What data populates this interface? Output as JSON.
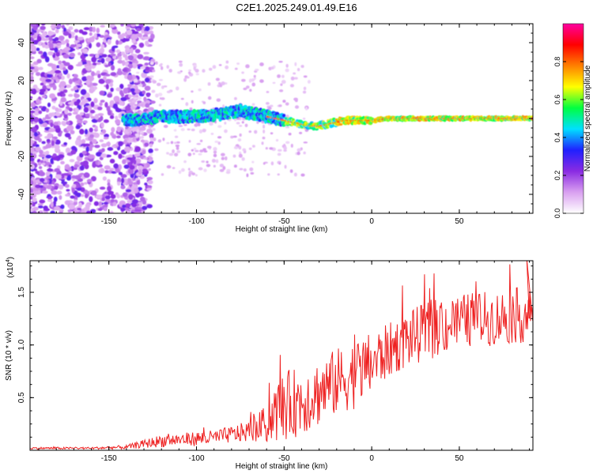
{
  "title": "C2E1.2025.249.01.49.E16",
  "chart_data": [
    {
      "type": "heatmap",
      "xlabel": "Height of straight line (km)",
      "ylabel": "Frequency (Hz)",
      "xlim": [
        -195,
        92
      ],
      "ylim": [
        -50,
        50
      ],
      "xticks": [
        -150,
        -100,
        -50,
        0,
        50
      ],
      "yticks": [
        -40,
        -20,
        0,
        20,
        40
      ],
      "xtick_labels": [
        "-150",
        "-100",
        "-50",
        "0",
        "50"
      ],
      "ytick_labels": [
        "-40",
        "-20",
        "0",
        "20",
        "40"
      ],
      "colorbar": {
        "label": "Normalized spectral amplitude",
        "range": [
          0,
          1
        ],
        "ticks": [
          0.0,
          0.2,
          0.4,
          0.6,
          0.8
        ],
        "tick_labels": [
          "0.0",
          "0.2",
          "0.4",
          "0.6",
          "0.8"
        ],
        "colors": [
          "#ffffff",
          "#d9a0f0",
          "#8a2be2",
          "#2020ff",
          "#00e0ff",
          "#00ff40",
          "#ffff00",
          "#ff8000",
          "#ff0000",
          "#ff00a0"
        ]
      },
      "ridge": {
        "x": [
          -140,
          -130,
          -120,
          -110,
          -100,
          -90,
          -80,
          -75,
          -70,
          -60,
          -50,
          -40,
          -35,
          -30,
          -25,
          -20,
          -15,
          -10,
          0,
          10,
          20,
          30,
          40,
          50,
          60,
          70,
          80,
          90
        ],
        "freq": [
          -1,
          0,
          1,
          1,
          1,
          2,
          3,
          4,
          3,
          1,
          -1,
          -3,
          -4,
          -4,
          -3,
          -2,
          -1,
          -1,
          -1,
          0,
          0,
          0,
          0,
          0,
          0,
          0,
          0,
          0
        ]
      }
    },
    {
      "type": "line",
      "xlabel": "Height of straight line (km)",
      "ylabel": "SNR (10 * v/v)",
      "scale_label": "(x10",
      "scale_exponent": "4",
      "xlim": [
        -195,
        92
      ],
      "ylim": [
        0,
        1.8
      ],
      "xticks": [
        -150,
        -100,
        -50,
        0,
        50
      ],
      "yticks": [
        0.5,
        1.0,
        1.5
      ],
      "xtick_labels": [
        "-150",
        "-100",
        "-50",
        "0",
        "50"
      ],
      "ytick_labels": [
        "0.5",
        "1.0",
        "1.5"
      ],
      "series": [
        {
          "name": "SNR",
          "color": "#ee2222",
          "envelope": {
            "x": [
              -195,
              -160,
              -140,
              -130,
              -120,
              -110,
              -100,
              -90,
              -80,
              -70,
              -60,
              -55,
              -50,
              -40,
              -30,
              -20,
              -10,
              0,
              10,
              20,
              30,
              40,
              50,
              60,
              70,
              80,
              92
            ],
            "mean": [
              0.02,
              0.02,
              0.03,
              0.06,
              0.09,
              0.1,
              0.11,
              0.12,
              0.15,
              0.18,
              0.25,
              0.35,
              0.42,
              0.47,
              0.55,
              0.65,
              0.72,
              0.82,
              0.95,
              1.05,
              1.12,
              1.18,
              1.22,
              1.25,
              1.25,
              1.28,
              1.28
            ],
            "amp": [
              0.01,
              0.01,
              0.02,
              0.04,
              0.06,
              0.06,
              0.07,
              0.07,
              0.08,
              0.1,
              0.18,
              0.28,
              0.33,
              0.33,
              0.32,
              0.32,
              0.33,
              0.3,
              0.26,
              0.26,
              0.28,
              0.28,
              0.26,
              0.26,
              0.26,
              0.27,
              0.26
            ]
          }
        }
      ]
    }
  ]
}
